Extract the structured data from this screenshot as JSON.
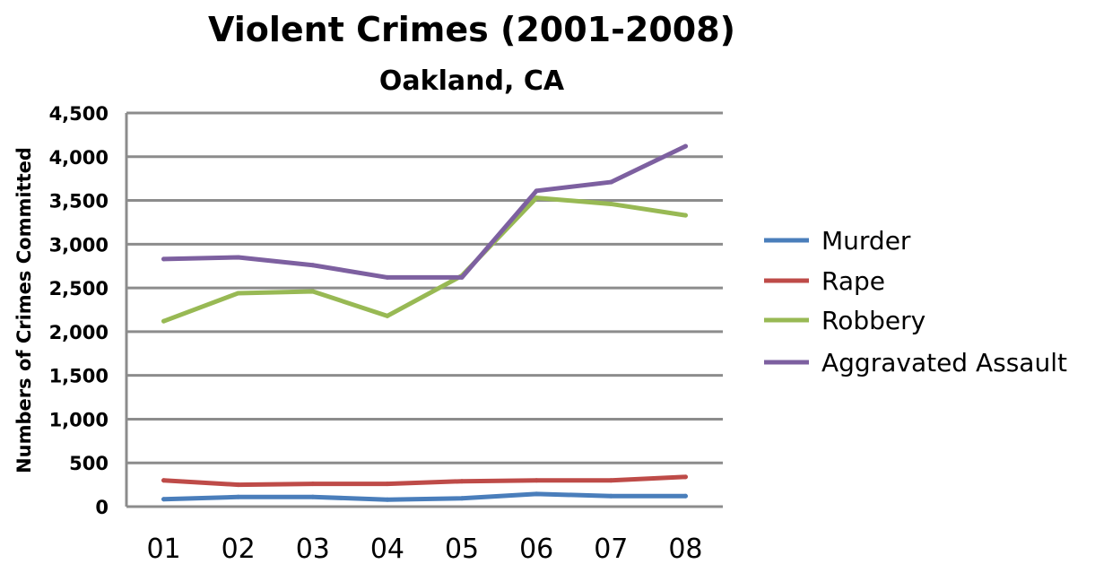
{
  "chart_data": {
    "type": "line",
    "title": "Violent Crimes (2001-2008)",
    "subtitle": "Oakland, CA",
    "xlabel": "",
    "ylabel": "Numbers of Crimes Committed",
    "categories": [
      "01",
      "02",
      "03",
      "04",
      "05",
      "06",
      "07",
      "08"
    ],
    "ylim": [
      0,
      4500
    ],
    "yticks": [
      0,
      500,
      1000,
      1500,
      2000,
      2500,
      3000,
      3500,
      4000,
      4500
    ],
    "ytick_labels": [
      "0",
      "500",
      "1,000",
      "1,500",
      "2,000",
      "2,500",
      "3,000",
      "3,500",
      "4,000",
      "4,500"
    ],
    "grid": true,
    "legend_position": "right",
    "series": [
      {
        "name": "Murder",
        "color": "#4a7ebb",
        "values": [
          85,
          110,
          110,
          80,
          95,
          145,
          120,
          120
        ]
      },
      {
        "name": "Rape",
        "color": "#be4b48",
        "values": [
          300,
          250,
          260,
          260,
          290,
          300,
          300,
          340
        ]
      },
      {
        "name": "Robbery",
        "color": "#98b954",
        "values": [
          2120,
          2440,
          2460,
          2180,
          2640,
          3530,
          3460,
          3330
        ]
      },
      {
        "name": "Aggravated Assault",
        "color": "#7d60a0",
        "values": [
          2830,
          2850,
          2760,
          2620,
          2620,
          3610,
          3710,
          4120
        ]
      }
    ]
  }
}
